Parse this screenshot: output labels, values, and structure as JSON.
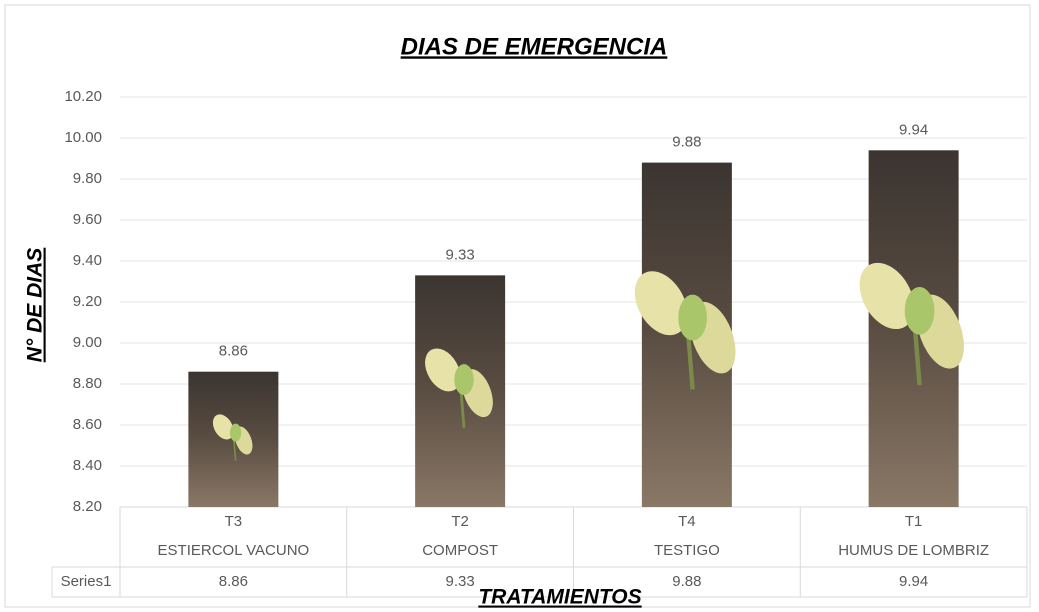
{
  "chart_data": {
    "type": "bar",
    "title": "DIAS DE EMERGENCIA",
    "x_label": "TRATAMIENTOS",
    "y_label": "N° DE DIAS",
    "categories": [
      [
        "T3",
        "ESTIERCOL VACUNO"
      ],
      [
        "T2",
        "COMPOST"
      ],
      [
        "T4",
        "TESTIGO"
      ],
      [
        "T1",
        "HUMUS DE LOMBRIZ"
      ]
    ],
    "series": [
      {
        "name": "Series1",
        "values": [
          8.86,
          9.33,
          9.88,
          9.94
        ]
      }
    ],
    "ylim": [
      8.2,
      10.2
    ],
    "yticks": [
      {
        "value": 8.2,
        "label": "8.20"
      },
      {
        "value": 8.4,
        "label": "8.40"
      },
      {
        "value": 8.6,
        "label": "8.60"
      },
      {
        "value": 8.8,
        "label": "8.80"
      },
      {
        "value": 9.0,
        "label": "9.00"
      },
      {
        "value": 9.2,
        "label": "9.20"
      },
      {
        "value": 9.4,
        "label": "9.40"
      },
      {
        "value": 9.6,
        "label": "9.60"
      },
      {
        "value": 9.8,
        "label": "9.80"
      },
      {
        "value": 10.0,
        "label": "10.00"
      },
      {
        "value": 10.2,
        "label": "10.20"
      }
    ],
    "grid": true,
    "data_table": true
  }
}
